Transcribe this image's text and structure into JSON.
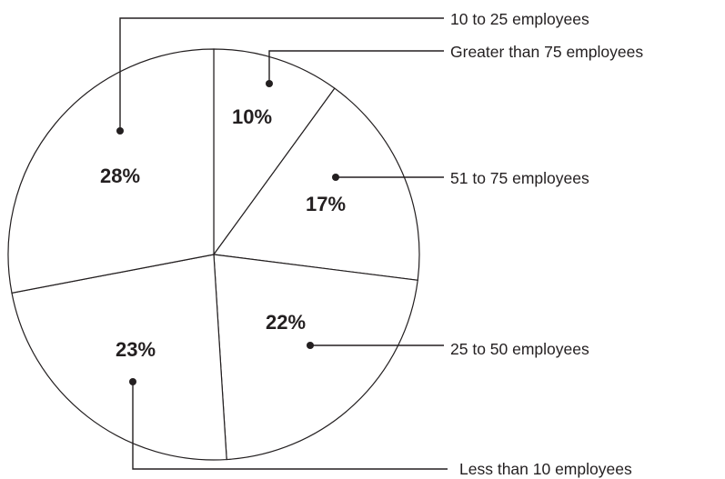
{
  "chart_data": {
    "type": "pie",
    "title": "",
    "slices": [
      {
        "label": "Greater than 75 employees",
        "value": 10,
        "display": "10%"
      },
      {
        "label": "51 to 75 employees",
        "value": 17,
        "display": "17%"
      },
      {
        "label": "25 to 50 employees",
        "value": 22,
        "display": "22%"
      },
      {
        "label": "Less than 10 employees",
        "value": 23,
        "display": "23%"
      },
      {
        "label": "10 to 25 employees",
        "value": 28,
        "display": "28%"
      }
    ]
  },
  "colors": {
    "stroke": "#231f20",
    "fill": "#ffffff"
  }
}
